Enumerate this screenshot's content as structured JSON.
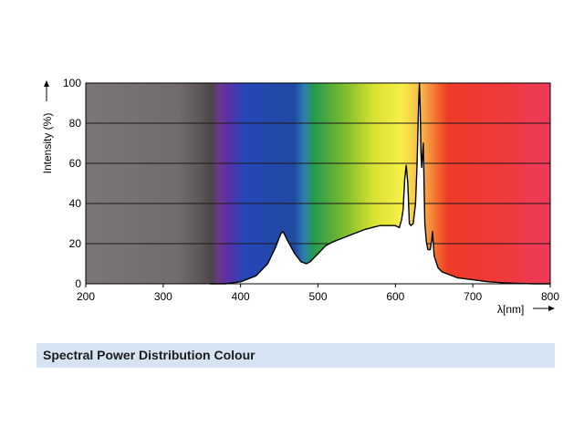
{
  "caption": "Spectral Power Distribution Colour",
  "chart_data": {
    "type": "line",
    "title": "",
    "xlabel": "λ[nm]",
    "ylabel": "Intensity (%)",
    "xlim": [
      200,
      800
    ],
    "ylim": [
      0,
      100
    ],
    "xticks": [
      200,
      300,
      400,
      500,
      600,
      700,
      800
    ],
    "yticks": [
      0,
      20,
      40,
      60,
      80,
      100
    ],
    "grid": "horizontal",
    "background": "visible spectrum colour gradient",
    "series": [
      {
        "name": "",
        "x": [
          360,
          380,
          400,
          420,
          435,
          445,
          452,
          455,
          460,
          470,
          478,
          485,
          490,
          500,
          510,
          520,
          540,
          560,
          580,
          600,
          605,
          608,
          610,
          612,
          614,
          616,
          618,
          620,
          623,
          626,
          628,
          630,
          631,
          632,
          633,
          634,
          636,
          638,
          640,
          642,
          645,
          647,
          648,
          650,
          655,
          660,
          680,
          700,
          720,
          740,
          760,
          780,
          800
        ],
        "y": [
          0,
          0,
          1,
          4,
          10,
          18,
          25,
          26,
          22,
          15,
          11,
          10,
          11,
          15,
          19,
          21,
          24,
          27,
          29,
          29,
          28,
          32,
          37,
          52,
          59,
          50,
          30,
          29,
          30,
          40,
          60,
          90,
          100,
          88,
          65,
          58,
          70,
          30,
          21,
          17,
          17,
          22,
          26,
          14,
          8,
          6,
          3,
          2,
          1,
          0.5,
          0.2,
          0,
          0
        ]
      }
    ]
  }
}
